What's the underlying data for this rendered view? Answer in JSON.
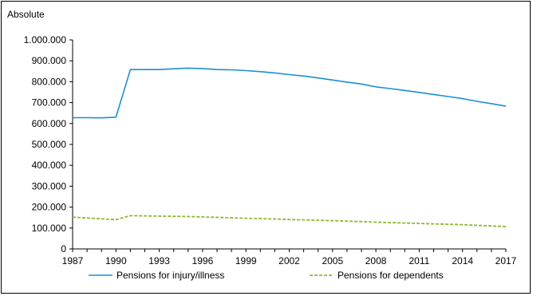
{
  "chart_data": {
    "type": "line",
    "title": "",
    "y_unit_label": "Absolute",
    "xlabel": "",
    "ylabel": "",
    "xlim": [
      1987,
      2017
    ],
    "ylim": [
      0,
      1000000
    ],
    "grid": false,
    "legend_position": "bottom",
    "x_ticks": [
      1987,
      1990,
      1993,
      1996,
      1999,
      2002,
      2005,
      2008,
      2011,
      2014,
      2017
    ],
    "x_tick_labels": [
      "1987",
      "1990",
      "1993",
      "1996",
      "1999",
      "2002",
      "2005",
      "2008",
      "2011",
      "2014",
      "2017"
    ],
    "y_ticks": [
      0,
      100000,
      200000,
      300000,
      400000,
      500000,
      600000,
      700000,
      800000,
      900000,
      1000000
    ],
    "y_tick_labels": [
      "0",
      "100.000",
      "200.000",
      "300.000",
      "400.000",
      "500.000",
      "600.000",
      "700.000",
      "800.000",
      "900.000",
      "1.000.000"
    ],
    "x": [
      1987,
      1988,
      1989,
      1990,
      1991,
      1992,
      1993,
      1994,
      1995,
      1996,
      1997,
      1998,
      1999,
      2000,
      2001,
      2002,
      2003,
      2004,
      2005,
      2006,
      2007,
      2008,
      2009,
      2010,
      2011,
      2012,
      2013,
      2014,
      2015,
      2016,
      2017
    ],
    "series": [
      {
        "name": "Pensions for injury/illness",
        "color": "#1a8fd0",
        "style": "solid",
        "values": [
          628000,
          628000,
          627000,
          630000,
          858000,
          858000,
          858000,
          862000,
          865000,
          863000,
          858000,
          857000,
          853000,
          848000,
          842000,
          834000,
          827000,
          818000,
          808000,
          798000,
          789000,
          775000,
          767000,
          758000,
          749000,
          739000,
          729000,
          719000,
          706000,
          695000,
          683000
        ]
      },
      {
        "name": "Pensions for dependents",
        "color": "#8db92e",
        "style": "dashed",
        "values": [
          152000,
          148000,
          144000,
          140000,
          159000,
          158000,
          157000,
          156000,
          155000,
          153000,
          151000,
          149000,
          147000,
          145000,
          143000,
          141000,
          139000,
          137000,
          135000,
          133000,
          131000,
          128000,
          126000,
          124000,
          122000,
          120000,
          118000,
          116000,
          113000,
          110000,
          107000
        ]
      }
    ]
  }
}
